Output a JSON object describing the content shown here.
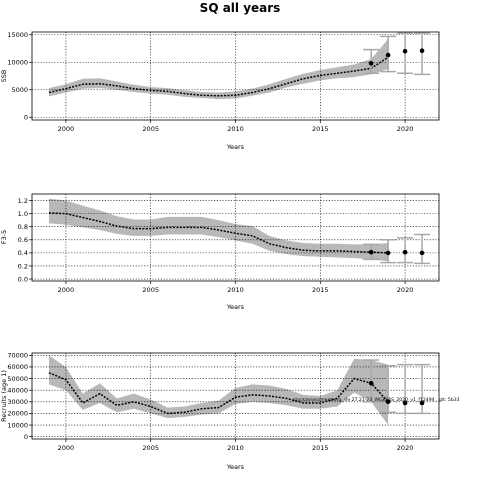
{
  "title": "SQ all years",
  "chart_data": [
    {
      "type": "line",
      "name": "ssb-panel",
      "xlabel": "Years",
      "ylabel": "SSB",
      "xlim": [
        1998,
        2022
      ],
      "ylim": [
        -500,
        15500
      ],
      "xticks": [
        2000,
        2005,
        2010,
        2015,
        2020
      ],
      "yticks": [
        0,
        5000,
        10000,
        15000
      ],
      "grid": true,
      "x": [
        1999,
        2000,
        2001,
        2002,
        2003,
        2004,
        2005,
        2006,
        2007,
        2008,
        2009,
        2010,
        2011,
        2012,
        2013,
        2014,
        2015,
        2016,
        2017,
        2018,
        2019
      ],
      "values": [
        4500,
        5200,
        6000,
        6100,
        5700,
        5200,
        4900,
        4700,
        4300,
        4000,
        3900,
        4000,
        4500,
        5200,
        6100,
        7000,
        7600,
        8000,
        8400,
        8900,
        10900
      ],
      "lower": [
        3800,
        4500,
        5200,
        5300,
        5000,
        4600,
        4300,
        4100,
        3700,
        3500,
        3300,
        3400,
        3900,
        4500,
        5400,
        6100,
        6700,
        7100,
        7300,
        7800,
        8800
      ],
      "upper": [
        5300,
        6000,
        7000,
        7100,
        6500,
        5900,
        5500,
        5300,
        4900,
        4600,
        4500,
        4700,
        5200,
        6000,
        7000,
        7900,
        8600,
        9100,
        9600,
        10600,
        14200
      ],
      "forecast": {
        "x": [
          2018,
          2019,
          2020,
          2021
        ],
        "values": [
          9800,
          11300,
          12000,
          12100
        ],
        "lower": [
          8000,
          8300,
          8000,
          7800
        ],
        "upper": [
          12300,
          14700,
          15300,
          15300
        ]
      }
    },
    {
      "type": "line",
      "name": "f-panel",
      "xlabel": "Years",
      "ylabel": "F3-5",
      "xlim": [
        1998,
        2022
      ],
      "ylim": [
        -0.03,
        1.3
      ],
      "xticks": [
        2000,
        2005,
        2010,
        2015,
        2020
      ],
      "yticks": [
        0.0,
        0.2,
        0.4,
        0.6,
        0.8,
        1.0,
        1.2
      ],
      "grid": true,
      "x": [
        1999,
        2000,
        2001,
        2002,
        2003,
        2004,
        2005,
        2006,
        2007,
        2008,
        2009,
        2010,
        2011,
        2012,
        2013,
        2014,
        2015,
        2016,
        2017,
        2018,
        2019
      ],
      "values": [
        1.01,
        1.0,
        0.94,
        0.88,
        0.81,
        0.77,
        0.77,
        0.79,
        0.79,
        0.79,
        0.75,
        0.7,
        0.66,
        0.54,
        0.48,
        0.44,
        0.43,
        0.43,
        0.42,
        0.41,
        0.4
      ],
      "lower": [
        0.85,
        0.83,
        0.79,
        0.75,
        0.69,
        0.66,
        0.66,
        0.68,
        0.68,
        0.68,
        0.64,
        0.59,
        0.54,
        0.43,
        0.38,
        0.35,
        0.34,
        0.33,
        0.32,
        0.3,
        0.27
      ],
      "upper": [
        1.23,
        1.2,
        1.12,
        1.05,
        0.96,
        0.91,
        0.91,
        0.95,
        0.95,
        0.95,
        0.9,
        0.84,
        0.81,
        0.66,
        0.59,
        0.55,
        0.54,
        0.54,
        0.53,
        0.53,
        0.55
      ],
      "forecast": {
        "x": [
          2018,
          2019,
          2020,
          2021
        ],
        "values": [
          0.41,
          0.4,
          0.41,
          0.4
        ],
        "lower": [
          0.3,
          0.25,
          0.25,
          0.24
        ],
        "upper": [
          0.53,
          0.6,
          0.63,
          0.68
        ]
      }
    },
    {
      "type": "line",
      "name": "recruits-panel",
      "xlabel": "Years",
      "ylabel": "Recruits (age 1)",
      "xlim": [
        1998,
        2022
      ],
      "ylim": [
        -2000,
        72000
      ],
      "xticks": [
        2000,
        2005,
        2010,
        2015,
        2020
      ],
      "yticks": [
        0,
        10000,
        20000,
        30000,
        40000,
        50000,
        60000,
        70000
      ],
      "grid": true,
      "x": [
        1999,
        2000,
        2001,
        2002,
        2003,
        2004,
        2005,
        2006,
        2007,
        2008,
        2009,
        2010,
        2011,
        2012,
        2013,
        2014,
        2015,
        2016,
        2017,
        2018,
        2019
      ],
      "values": [
        55000,
        49000,
        29000,
        37000,
        27000,
        30000,
        26000,
        20000,
        21000,
        24000,
        25000,
        34000,
        36000,
        35000,
        33000,
        29000,
        29000,
        33000,
        50000,
        46000,
        30000
      ],
      "lower": [
        45000,
        40000,
        23000,
        29000,
        21000,
        24000,
        20000,
        16000,
        17000,
        19000,
        20000,
        28000,
        30000,
        29000,
        27000,
        24000,
        24000,
        26000,
        38000,
        30000,
        10000
      ],
      "upper": [
        70000,
        60000,
        37000,
        46000,
        33000,
        37000,
        32000,
        25000,
        26000,
        29000,
        31000,
        42000,
        45000,
        44000,
        41000,
        36000,
        35000,
        40000,
        67000,
        66000,
        62000
      ],
      "forecast": {
        "x": [
          2018,
          2019,
          2020,
          2021
        ],
        "values": [
          46000,
          30000,
          29000,
          29000
        ],
        "lower": [
          30000,
          21000,
          20000,
          20000
        ],
        "upper": [
          66000,
          61000,
          62000,
          62000
        ]
      },
      "annotation": "stockassessment.org, (le 27.21-23_WGBFAS_2020_v1_f12494 , git: 5b33"
    }
  ]
}
